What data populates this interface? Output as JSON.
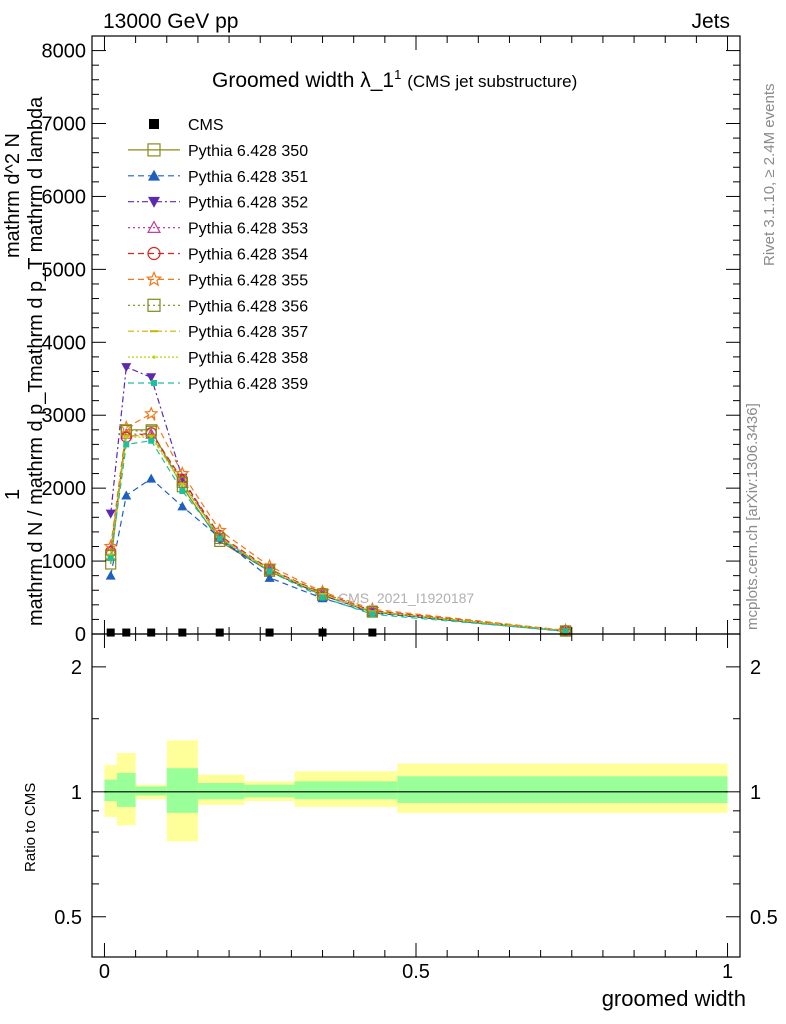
{
  "header": {
    "left": "13000 GeV pp",
    "right": "Jets"
  },
  "side_labels": {
    "rivet": "Rivet 3.1.10, ≥ 2.4M events",
    "mcplots": "mcplots.cern.ch [arXiv:1306.3436]"
  },
  "chart_data": [
    {
      "type": "line",
      "title": "Groomed width",
      "title_symbol": "λ_1",
      "title_sup": "1",
      "subtitle": "(CMS jet substructure)",
      "watermark": "CMS_2021_I1920187",
      "xlim": [
        -0.02,
        1.02
      ],
      "ylim": [
        0,
        8200
      ],
      "y_ticks": [
        "0",
        "1000",
        "2000",
        "3000",
        "4000",
        "5000",
        "6000",
        "7000",
        "8000"
      ],
      "ylabel_parts": {
        "frac1_num": "1",
        "frac1_den": "mathrm d N / mathrm d p_T",
        "frac2_num": "mathrm d^2 N",
        "frac2_den": "mathrm d p_T mathrm d lambda"
      },
      "x": [
        0.01,
        0.035,
        0.075,
        0.125,
        0.185,
        0.265,
        0.35,
        0.43,
        0.74
      ],
      "legend_position": "top-left",
      "series": [
        {
          "name": "CMS",
          "color": "#000000",
          "marker": "square-filled",
          "dash": "none",
          "values": [
            20,
            20,
            20,
            20,
            20,
            20,
            20,
            20,
            20
          ]
        },
        {
          "name": "Pythia 6.428 350",
          "color": "#8a8a1a",
          "marker": "square-open",
          "dash": "solid",
          "values": [
            960,
            2800,
            2800,
            2020,
            1270,
            860,
            530,
            300,
            40
          ]
        },
        {
          "name": "Pythia 6.428 351",
          "color": "#1f5fbf",
          "marker": "triangle-up-filled",
          "dash": "6,4",
          "values": [
            800,
            1900,
            2130,
            1750,
            1320,
            770,
            490,
            290,
            35
          ]
        },
        {
          "name": "Pythia 6.428 352",
          "color": "#5a2ab0",
          "marker": "triangle-down-filled",
          "dash": "6,3,2,3",
          "values": [
            1650,
            3660,
            3520,
            2140,
            1290,
            860,
            530,
            300,
            40
          ]
        },
        {
          "name": "Pythia 6.428 353",
          "color": "#c040a0",
          "marker": "triangle-up-open",
          "dash": "2,3",
          "values": [
            1150,
            2740,
            2740,
            2100,
            1330,
            880,
            560,
            320,
            45
          ]
        },
        {
          "name": "Pythia 6.428 354",
          "color": "#d9221c",
          "marker": "circle-open",
          "dash": "6,4",
          "values": [
            1130,
            2700,
            2760,
            2120,
            1350,
            890,
            560,
            320,
            45
          ]
        },
        {
          "name": "Pythia 6.428 355",
          "color": "#f07a1a",
          "marker": "star-open",
          "dash": "6,4",
          "values": [
            1200,
            2830,
            3020,
            2200,
            1420,
            930,
            580,
            340,
            50
          ]
        },
        {
          "name": "Pythia 6.428 356",
          "color": "#7a8a1a",
          "marker": "square-open",
          "dash": "2,3",
          "values": [
            1080,
            2790,
            2780,
            2080,
            1310,
            880,
            550,
            310,
            42
          ]
        },
        {
          "name": "Pythia 6.428 357",
          "color": "#c8b400",
          "marker": "dash",
          "dash": "6,3,2,3",
          "values": [
            1090,
            2720,
            2720,
            2060,
            1330,
            880,
            550,
            310,
            42
          ]
        },
        {
          "name": "Pythia 6.428 358",
          "color": "#b8d600",
          "marker": "dot",
          "dash": "2,2",
          "values": [
            1070,
            2700,
            2700,
            2050,
            1320,
            870,
            545,
            305,
            40
          ]
        },
        {
          "name": "Pythia 6.428 359",
          "color": "#1fbf9a",
          "marker": "square-filled-small",
          "dash": "6,4",
          "values": [
            1040,
            2600,
            2650,
            1960,
            1310,
            860,
            500,
            270,
            38
          ]
        }
      ]
    },
    {
      "type": "area",
      "ylabel": "Ratio to CMS",
      "xlabel": "groomed width",
      "xlim": [
        -0.02,
        1.02
      ],
      "ylim": [
        0.4,
        2.4
      ],
      "log_scale": true,
      "x_ticks": [
        "0",
        "0.5",
        "1"
      ],
      "y_ticks": [
        "0.5",
        "1",
        "2"
      ],
      "bands": [
        {
          "x0": 0.0,
          "x1": 0.02,
          "green": [
            0.95,
            1.07
          ],
          "yellow": [
            0.87,
            1.16
          ]
        },
        {
          "x0": 0.02,
          "x1": 0.05,
          "green": [
            0.92,
            1.11
          ],
          "yellow": [
            0.83,
            1.24
          ]
        },
        {
          "x0": 0.05,
          "x1": 0.1,
          "green": [
            0.98,
            1.03
          ],
          "yellow": [
            0.96,
            1.04
          ]
        },
        {
          "x0": 0.1,
          "x1": 0.15,
          "green": [
            0.89,
            1.14
          ],
          "yellow": [
            0.76,
            1.33
          ]
        },
        {
          "x0": 0.15,
          "x1": 0.225,
          "green": [
            0.96,
            1.05
          ],
          "yellow": [
            0.93,
            1.1
          ]
        },
        {
          "x0": 0.225,
          "x1": 0.305,
          "green": [
            0.97,
            1.04
          ],
          "yellow": [
            0.95,
            1.06
          ]
        },
        {
          "x0": 0.305,
          "x1": 0.47,
          "green": [
            0.96,
            1.06
          ],
          "yellow": [
            0.92,
            1.12
          ]
        },
        {
          "x0": 0.47,
          "x1": 1.0,
          "green": [
            0.94,
            1.09
          ],
          "yellow": [
            0.89,
            1.17
          ]
        }
      ]
    }
  ]
}
